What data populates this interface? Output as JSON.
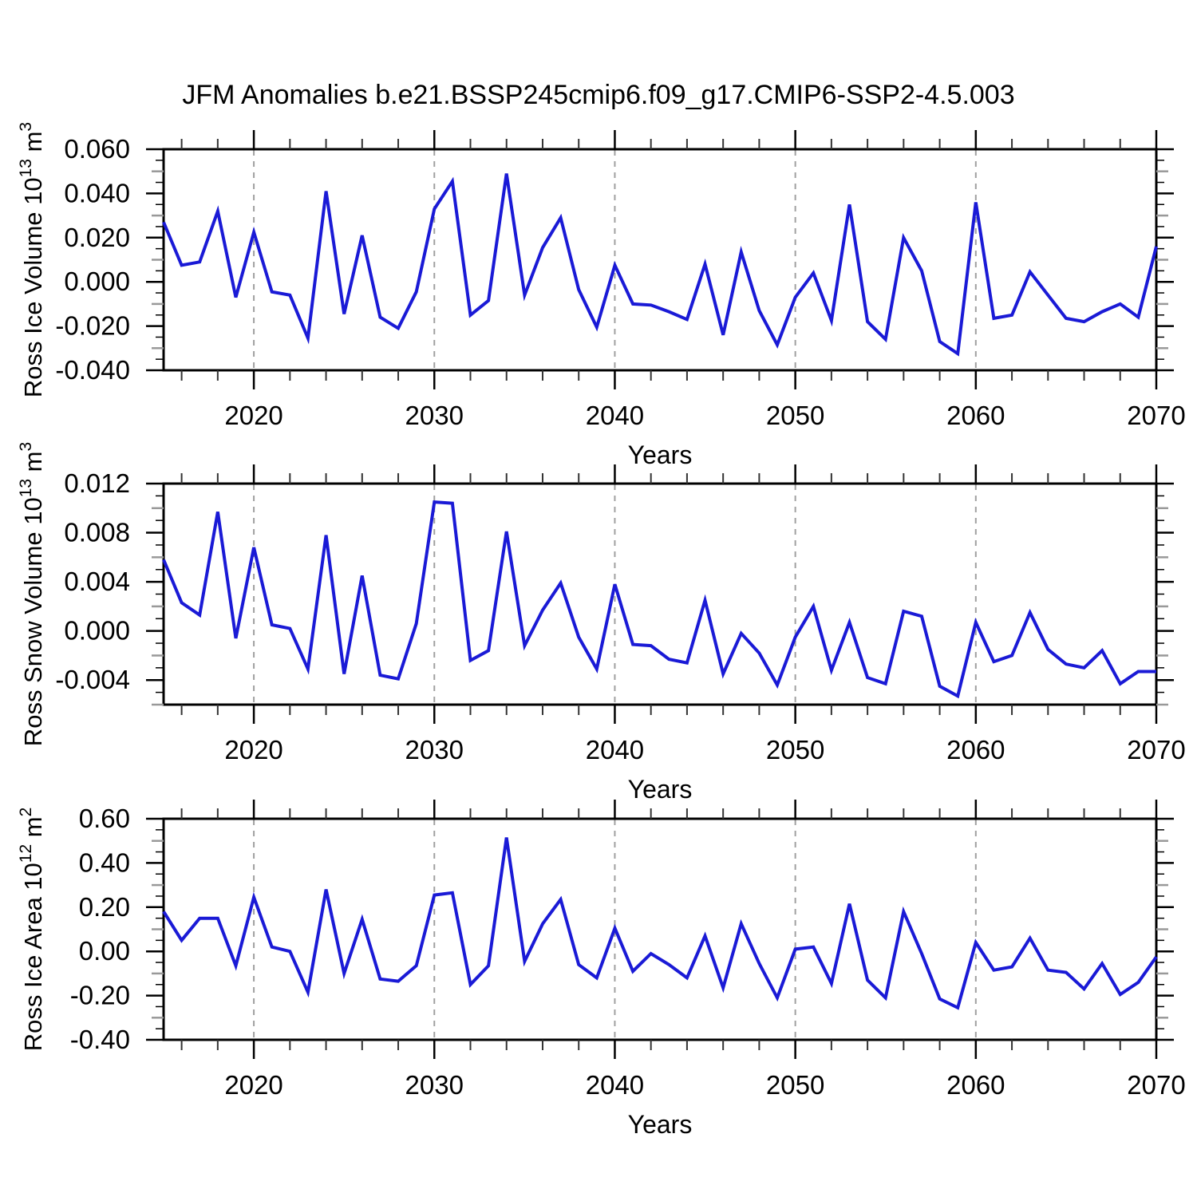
{
  "title": "JFM Anomalies b.e21.BSSP245cmip6.f09_g17.CMIP6-SSP2-4.5.003",
  "colors": {
    "line": "#1a1ad6",
    "axis": "#000000",
    "grid": "#a0a0a0",
    "mid_tick": "#999999",
    "minor_tick": "#333333",
    "text": "#000000"
  },
  "x_axis": {
    "label": "Years",
    "start_year": 2015,
    "end_year": 2070,
    "minor_step": 2,
    "major_ticks": [
      {
        "v": 2020,
        "l": "2020"
      },
      {
        "v": 2030,
        "l": "2030"
      },
      {
        "v": 2040,
        "l": "2040"
      },
      {
        "v": 2050,
        "l": "2050"
      },
      {
        "v": 2060,
        "l": "2060"
      },
      {
        "v": 2070,
        "l": "2070"
      }
    ],
    "gridline_years": [
      2020,
      2030,
      2040,
      2050,
      2060
    ]
  },
  "chart_data": [
    {
      "type": "line",
      "name": "ross-ice-volume",
      "ylabel_parts": [
        [
          "t",
          "Ross Ice Volume 10"
        ],
        [
          "s",
          "13"
        ],
        [
          "t",
          " m"
        ],
        [
          "s",
          "3"
        ]
      ],
      "ylabel_plain": "Ross Ice Volume 10^13 m^3",
      "xlabel": "Years",
      "y_range": [
        -0.04,
        0.06
      ],
      "y_major_step": 0.02,
      "y_minor_step": 0.005,
      "y_majors": [
        {
          "v": 0.06,
          "l": "0.060"
        },
        {
          "v": 0.04,
          "l": "0.040"
        },
        {
          "v": 0.02,
          "l": "0.020"
        },
        {
          "v": 0.0,
          "l": "0.000"
        },
        {
          "v": -0.02,
          "l": "-0.020"
        },
        {
          "v": -0.04,
          "l": "-0.040"
        }
      ],
      "x": [
        2015,
        2016,
        2017,
        2018,
        2019,
        2020,
        2021,
        2022,
        2023,
        2024,
        2025,
        2026,
        2027,
        2028,
        2029,
        2030,
        2031,
        2032,
        2033,
        2034,
        2035,
        2036,
        2037,
        2038,
        2039,
        2040,
        2041,
        2042,
        2043,
        2044,
        2045,
        2046,
        2047,
        2048,
        2049,
        2050,
        2051,
        2052,
        2053,
        2054,
        2055,
        2056,
        2057,
        2058,
        2059,
        2060,
        2061,
        2062,
        2063,
        2064,
        2065,
        2066,
        2067,
        2068,
        2069,
        2070
      ],
      "values": [
        0.027,
        0.0075,
        0.009,
        0.032,
        -0.007,
        0.0225,
        -0.0045,
        -0.006,
        -0.0255,
        0.041,
        -0.0145,
        0.021,
        -0.016,
        -0.021,
        -0.0045,
        0.033,
        0.0455,
        -0.015,
        -0.0085,
        0.049,
        -0.006,
        0.0155,
        0.029,
        -0.0035,
        -0.0205,
        0.0075,
        -0.01,
        -0.0105,
        -0.0135,
        -0.017,
        0.008,
        -0.024,
        0.0135,
        -0.013,
        -0.0285,
        -0.007,
        0.004,
        -0.0175,
        0.035,
        -0.018,
        -0.026,
        0.02,
        0.005,
        -0.027,
        -0.0325,
        0.036,
        -0.0165,
        -0.015,
        0.0045,
        -0.006,
        -0.0165,
        -0.018,
        -0.0135,
        -0.01,
        -0.016,
        0.016
      ]
    },
    {
      "type": "line",
      "name": "ross-snow-volume",
      "ylabel_parts": [
        [
          "t",
          "Ross Snow Volume 10"
        ],
        [
          "s",
          "13"
        ],
        [
          "t",
          " m"
        ],
        [
          "s",
          "3"
        ]
      ],
      "ylabel_plain": "Ross Snow Volume 10^13 m^3",
      "xlabel": "Years",
      "y_range": [
        -0.006,
        0.012
      ],
      "y_major_step": 0.004,
      "y_minor_step": 0.001,
      "y_majors": [
        {
          "v": 0.012,
          "l": "0.012"
        },
        {
          "v": 0.008,
          "l": "0.008"
        },
        {
          "v": 0.004,
          "l": "0.004"
        },
        {
          "v": 0.0,
          "l": "0.000"
        },
        {
          "v": -0.004,
          "l": "-0.004"
        }
      ],
      "x": [
        2015,
        2016,
        2017,
        2018,
        2019,
        2020,
        2021,
        2022,
        2023,
        2024,
        2025,
        2026,
        2027,
        2028,
        2029,
        2030,
        2031,
        2032,
        2033,
        2034,
        2035,
        2036,
        2037,
        2038,
        2039,
        2040,
        2041,
        2042,
        2043,
        2044,
        2045,
        2046,
        2047,
        2048,
        2049,
        2050,
        2051,
        2052,
        2053,
        2054,
        2055,
        2056,
        2057,
        2058,
        2059,
        2060,
        2061,
        2062,
        2063,
        2064,
        2065,
        2066,
        2067,
        2068,
        2069,
        2070
      ],
      "values": [
        0.0058,
        0.0023,
        0.0013,
        0.0097,
        -0.0006,
        0.0068,
        0.0005,
        0.0002,
        -0.0031,
        0.0078,
        -0.0035,
        0.0045,
        -0.0036,
        -0.0039,
        0.0006,
        0.0105,
        0.0104,
        -0.0024,
        -0.0016,
        0.0081,
        -0.0012,
        0.0017,
        0.0039,
        -0.0005,
        -0.0031,
        0.0038,
        -0.0011,
        -0.0012,
        -0.0023,
        -0.0026,
        0.0025,
        -0.0035,
        -0.0002,
        -0.0018,
        -0.0044,
        -0.0005,
        0.002,
        -0.0032,
        0.0007,
        -0.0038,
        -0.0043,
        0.0016,
        0.0012,
        -0.0045,
        -0.0053,
        0.0007,
        -0.0025,
        -0.002,
        0.0015,
        -0.0015,
        -0.0027,
        -0.003,
        -0.0016,
        -0.0043,
        -0.0033,
        -0.0033
      ]
    },
    {
      "type": "line",
      "name": "ross-ice-area",
      "ylabel_parts": [
        [
          "t",
          "Ross Ice Area 10"
        ],
        [
          "s",
          "12"
        ],
        [
          "t",
          " m"
        ],
        [
          "s",
          "2"
        ]
      ],
      "ylabel_plain": "Ross Ice Area 10^12 m^2",
      "xlabel": "Years",
      "y_range": [
        -0.4,
        0.6
      ],
      "y_major_step": 0.2,
      "y_minor_step": 0.05,
      "y_majors": [
        {
          "v": 0.6,
          "l": "0.60"
        },
        {
          "v": 0.4,
          "l": "0.40"
        },
        {
          "v": 0.2,
          "l": "0.20"
        },
        {
          "v": 0.0,
          "l": "0.00"
        },
        {
          "v": -0.2,
          "l": "-0.20"
        },
        {
          "v": -0.4,
          "l": "-0.40"
        }
      ],
      "x": [
        2015,
        2016,
        2017,
        2018,
        2019,
        2020,
        2021,
        2022,
        2023,
        2024,
        2025,
        2026,
        2027,
        2028,
        2029,
        2030,
        2031,
        2032,
        2033,
        2034,
        2035,
        2036,
        2037,
        2038,
        2039,
        2040,
        2041,
        2042,
        2043,
        2044,
        2045,
        2046,
        2047,
        2048,
        2049,
        2050,
        2051,
        2052,
        2053,
        2054,
        2055,
        2056,
        2057,
        2058,
        2059,
        2060,
        2061,
        2062,
        2063,
        2064,
        2065,
        2066,
        2067,
        2068,
        2069,
        2070
      ],
      "values": [
        0.18,
        0.05,
        0.15,
        0.15,
        -0.065,
        0.245,
        0.02,
        0.0,
        -0.185,
        0.28,
        -0.1,
        0.145,
        -0.125,
        -0.135,
        -0.065,
        0.255,
        0.265,
        -0.15,
        -0.065,
        0.515,
        -0.045,
        0.125,
        0.235,
        -0.06,
        -0.12,
        0.105,
        -0.09,
        -0.01,
        -0.06,
        -0.12,
        0.07,
        -0.165,
        0.125,
        -0.055,
        -0.21,
        0.01,
        0.02,
        -0.145,
        0.215,
        -0.13,
        -0.21,
        0.18,
        -0.01,
        -0.215,
        -0.255,
        0.04,
        -0.085,
        -0.07,
        0.06,
        -0.085,
        -0.095,
        -0.17,
        -0.055,
        -0.195,
        -0.14,
        -0.025
      ]
    }
  ]
}
